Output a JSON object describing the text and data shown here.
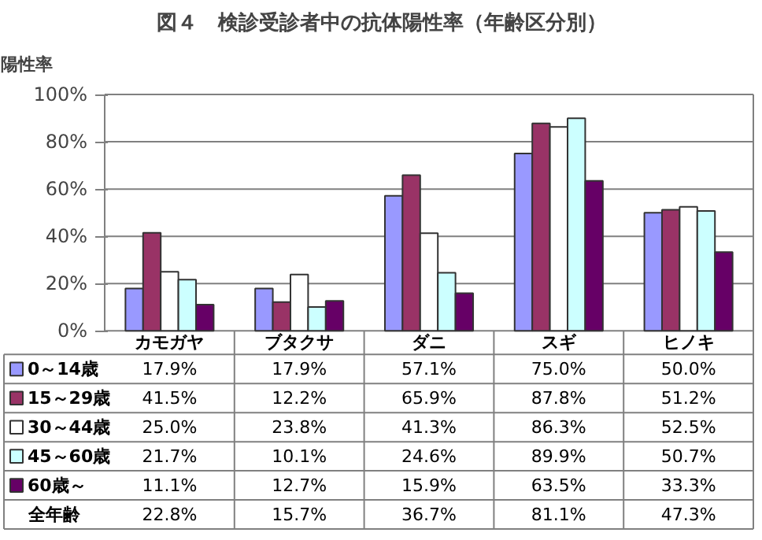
{
  "chart_data": {
    "type": "bar",
    "title": "図４　検診受診者中の抗体陽性率（年齢区分別）",
    "ylabel": "陽性率",
    "categories": [
      "カモガヤ",
      "ブタクサ",
      "ダニ",
      "スギ",
      "ヒノキ"
    ],
    "ylim": [
      0,
      100
    ],
    "yticks": [
      {
        "value": 0,
        "label": "0%"
      },
      {
        "value": 20,
        "label": "20%"
      },
      {
        "value": 40,
        "label": "40%"
      },
      {
        "value": 60,
        "label": "60%"
      },
      {
        "value": 80,
        "label": "80%"
      },
      {
        "value": 100,
        "label": "100%"
      }
    ],
    "grid": "y",
    "legend": "bottom",
    "series": [
      {
        "name": "0～14歳",
        "color": "#9999ff",
        "values": [
          17.9,
          17.9,
          57.1,
          75.0,
          50.0
        ],
        "value_labels": [
          "17.9%",
          "17.9%",
          "57.1%",
          "75.0%",
          "50.0%"
        ]
      },
      {
        "name": "15～29歳",
        "color": "#993366",
        "values": [
          41.5,
          12.2,
          65.9,
          87.8,
          51.2
        ],
        "value_labels": [
          "41.5%",
          "12.2%",
          "65.9%",
          "87.8%",
          "51.2%"
        ]
      },
      {
        "name": "30～44歳",
        "color": "#ffffff",
        "values": [
          25.0,
          23.8,
          41.3,
          86.3,
          52.5
        ],
        "value_labels": [
          "25.0%",
          "23.8%",
          "41.3%",
          "86.3%",
          "52.5%"
        ]
      },
      {
        "name": "45～60歳",
        "color": "#ccffff",
        "values": [
          21.7,
          10.1,
          24.6,
          89.9,
          50.7
        ],
        "value_labels": [
          "21.7%",
          "10.1%",
          "24.6%",
          "89.9%",
          "50.7%"
        ]
      },
      {
        "name": "60歳～",
        "color": "#660066",
        "values": [
          11.1,
          12.7,
          15.9,
          63.5,
          33.3
        ],
        "value_labels": [
          "11.1%",
          "12.7%",
          "15.9%",
          "63.5%",
          "33.3%"
        ]
      }
    ],
    "annotations": [
      "全年齢",
      "22.8%",
      "15.7%",
      "36.7%",
      "81.1%",
      "47.3%"
    ]
  }
}
